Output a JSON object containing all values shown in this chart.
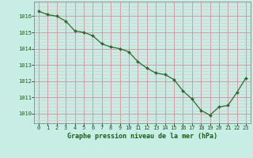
{
  "x": [
    0,
    1,
    2,
    3,
    4,
    5,
    6,
    7,
    8,
    9,
    10,
    11,
    12,
    13,
    14,
    15,
    16,
    17,
    18,
    19,
    20,
    21,
    22,
    23
  ],
  "y": [
    1016.3,
    1016.1,
    1016.0,
    1015.7,
    1015.1,
    1015.0,
    1014.8,
    1014.3,
    1014.1,
    1014.0,
    1013.8,
    1013.2,
    1012.8,
    1012.5,
    1012.4,
    1012.1,
    1011.4,
    1010.9,
    1010.2,
    1009.9,
    1010.4,
    1010.5,
    1011.3,
    1012.2
  ],
  "line_color": "#2d6a2d",
  "marker_color": "#2d6a2d",
  "bg_color": "#c8ede5",
  "major_grid_color": "#d0a0a8",
  "minor_grid_color": "#ddc8cc",
  "spine_color": "#888888",
  "tick_label_color": "#1a5c1a",
  "xlabel": "Graphe pression niveau de la mer (hPa)",
  "xlabel_color": "#1a5c1a",
  "ylabel_ticks": [
    1010,
    1011,
    1012,
    1013,
    1014,
    1015,
    1016
  ],
  "ylim": [
    1009.4,
    1016.9
  ],
  "xlim": [
    -0.5,
    23.5
  ],
  "xticks": [
    0,
    1,
    2,
    3,
    4,
    5,
    6,
    7,
    8,
    9,
    10,
    11,
    12,
    13,
    14,
    15,
    16,
    17,
    18,
    19,
    20,
    21,
    22,
    23
  ]
}
